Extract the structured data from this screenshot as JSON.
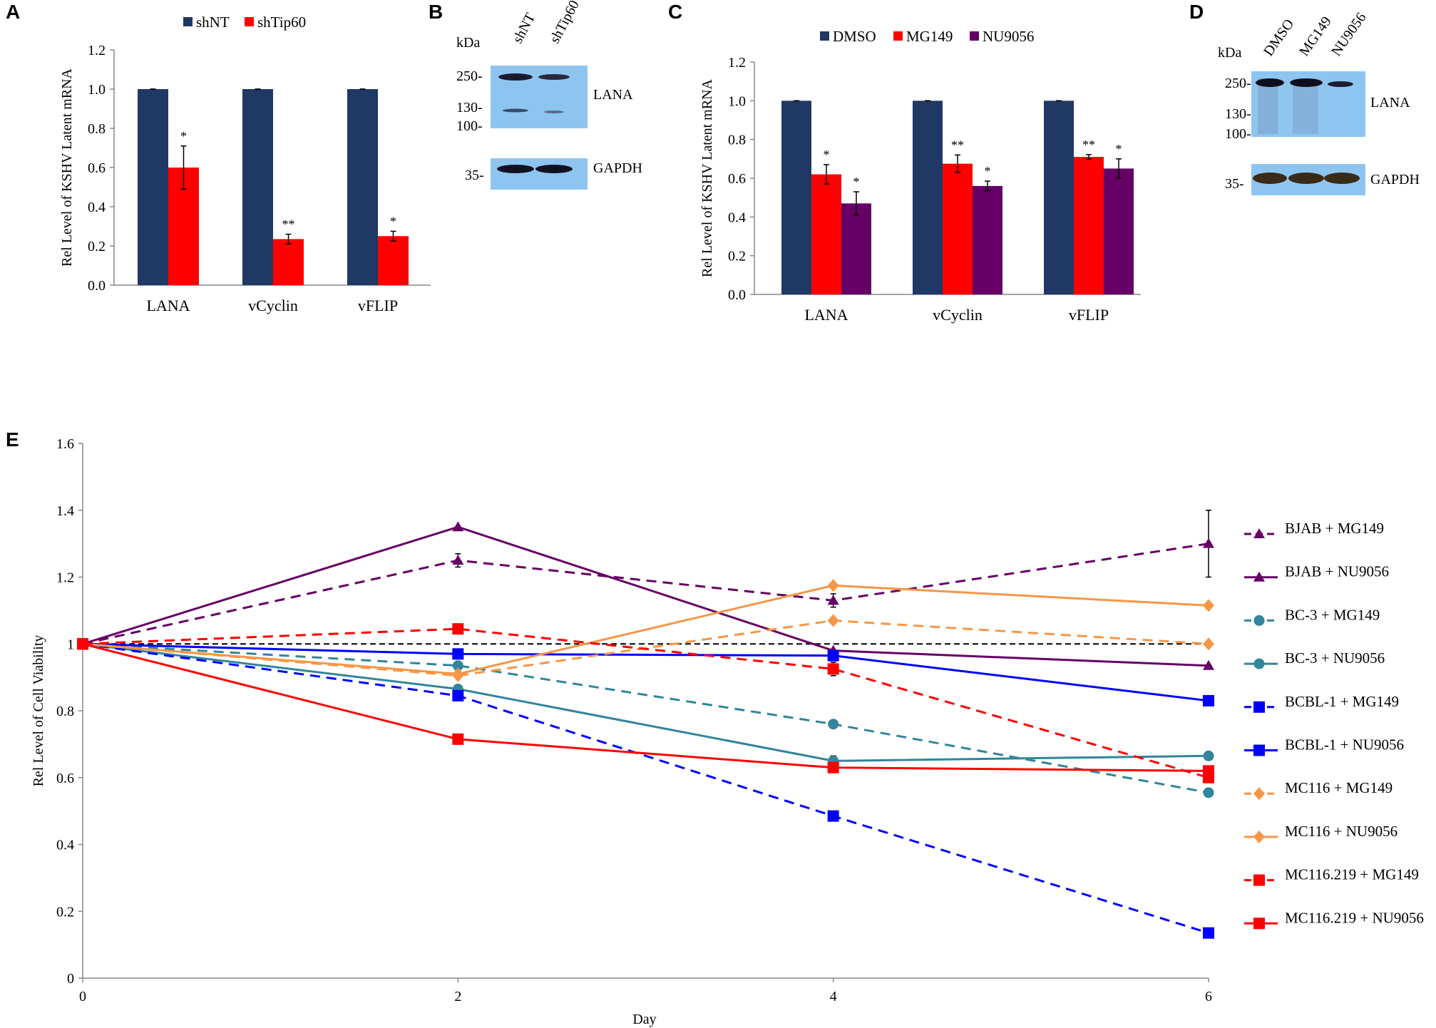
{
  "panels": {
    "A": "A",
    "B": "B",
    "C": "C",
    "D": "D",
    "E": "E"
  },
  "colors": {
    "navy": "#1f3864",
    "red": "#ff0000",
    "purple": "#660066",
    "teal": "#31859c",
    "blue": "#0000ff",
    "orange": "#f79646",
    "blot_bg": "#8ec5f0"
  },
  "chart_data": [
    {
      "panel": "A",
      "type": "bar",
      "categories": [
        "LANA",
        "vCyclin",
        "vFLIP"
      ],
      "series": [
        {
          "name": "shNT",
          "color": "#1f3864",
          "values": [
            1.0,
            1.0,
            1.0
          ],
          "errors": [
            0.0,
            0.0,
            0.0
          ],
          "significance": [
            "",
            "",
            ""
          ]
        },
        {
          "name": "shTip60",
          "color": "#ff0000",
          "values": [
            0.6,
            0.235,
            0.25
          ],
          "errors": [
            0.11,
            0.025,
            0.025
          ],
          "significance": [
            "*",
            "**",
            "*"
          ]
        }
      ],
      "ylabel": "Rel Level of KSHV Latent mRNA",
      "ylim": [
        0,
        1.2
      ],
      "yticks": [
        "0.0",
        "0.2",
        "0.4",
        "0.6",
        "0.8",
        "1.0",
        "1.2"
      ],
      "legend": "top"
    },
    {
      "panel": "C",
      "type": "bar",
      "categories": [
        "LANA",
        "vCyclin",
        "vFLIP"
      ],
      "series": [
        {
          "name": "DMSO",
          "color": "#1f3864",
          "values": [
            1.0,
            1.0,
            1.0
          ],
          "errors": [
            0.0,
            0.0,
            0.0
          ],
          "significance": [
            "",
            "",
            ""
          ]
        },
        {
          "name": "MG149",
          "color": "#ff0000",
          "values": [
            0.62,
            0.675,
            0.71
          ],
          "errors": [
            0.05,
            0.045,
            0.012
          ],
          "significance": [
            "*",
            "**",
            "**"
          ]
        },
        {
          "name": "NU9056",
          "color": "#660066",
          "values": [
            0.47,
            0.56,
            0.65
          ],
          "errors": [
            0.06,
            0.025,
            0.05
          ],
          "significance": [
            "*",
            "*",
            "*"
          ]
        }
      ],
      "ylabel": "Rel Level of KSHV Latent mRNA",
      "ylim": [
        0,
        1.2
      ],
      "yticks": [
        "0.0",
        "0.2",
        "0.4",
        "0.6",
        "0.8",
        "1.0",
        "1.2"
      ],
      "legend": "top"
    },
    {
      "panel": "E",
      "type": "line",
      "xlabel": "Day",
      "ylabel": "Rel Level of Cell Viability",
      "x": [
        0,
        2,
        4,
        6
      ],
      "xticks": [
        "0",
        "2",
        "4",
        "6"
      ],
      "ylim": [
        0,
        1.6
      ],
      "yticks": [
        "0",
        "0.2",
        "0.4",
        "0.6",
        "0.8",
        "1",
        "1.2",
        "1.4",
        "1.6"
      ],
      "reference_line": 1.0,
      "legend": "right",
      "series": [
        {
          "name": "BJAB +  MG149",
          "color": "#660066",
          "dash": true,
          "marker": "triangle",
          "values": [
            1.0,
            1.25,
            1.13,
            1.3
          ],
          "errors": [
            0,
            0.02,
            0.02,
            0.1
          ]
        },
        {
          "name": "BJAB + NU9056",
          "color": "#660066",
          "dash": false,
          "marker": "triangle",
          "values": [
            1.0,
            1.35,
            0.98,
            0.935
          ],
          "errors": [
            0,
            0,
            0,
            0
          ]
        },
        {
          "name": "BC-3 + MG149",
          "color": "#31859c",
          "dash": true,
          "marker": "circle",
          "values": [
            1.0,
            0.935,
            0.76,
            0.555
          ],
          "errors": [
            0,
            0,
            0,
            0
          ]
        },
        {
          "name": "BC-3 + NU9056",
          "color": "#31859c",
          "dash": false,
          "marker": "circle",
          "values": [
            1.0,
            0.865,
            0.65,
            0.665
          ],
          "errors": [
            0,
            0,
            0.015,
            0
          ]
        },
        {
          "name": "BCBL-1 + MG149",
          "color": "#0000ff",
          "dash": true,
          "marker": "square",
          "values": [
            1.0,
            0.845,
            0.485,
            0.135
          ],
          "errors": [
            0,
            0,
            0,
            0
          ]
        },
        {
          "name": "BCBL-1 + NU9056",
          "color": "#0000ff",
          "dash": false,
          "marker": "square",
          "values": [
            1.0,
            0.97,
            0.965,
            0.83
          ],
          "errors": [
            0,
            0,
            0,
            0
          ]
        },
        {
          "name": "MC116 + MG149",
          "color": "#f79646",
          "dash": true,
          "marker": "diamond",
          "values": [
            1.0,
            0.905,
            1.07,
            1.0
          ],
          "errors": [
            0,
            0,
            0,
            0
          ]
        },
        {
          "name": "MC116 + NU9056",
          "color": "#f79646",
          "dash": false,
          "marker": "diamond",
          "values": [
            1.0,
            0.91,
            1.175,
            1.115
          ],
          "errors": [
            0,
            0,
            0,
            0
          ]
        },
        {
          "name": "MC116.219 + MG149",
          "color": "#ff0000",
          "dash": true,
          "marker": "square",
          "values": [
            1.0,
            1.045,
            0.925,
            0.6
          ],
          "errors": [
            0,
            0,
            0.02,
            0
          ]
        },
        {
          "name": "MC116.219 + NU9056",
          "color": "#ff0000",
          "dash": false,
          "marker": "square",
          "values": [
            1.0,
            0.715,
            0.63,
            0.62
          ],
          "errors": [
            0,
            0,
            0,
            0
          ]
        }
      ]
    }
  ],
  "blot_B": {
    "kda": "kDa",
    "lanes": [
      "shNT",
      "shTip60"
    ],
    "markers": [
      "250-",
      "130-",
      "100-"
    ],
    "gapdh_marker": "35-",
    "labels": [
      "LANA",
      "GAPDH"
    ]
  },
  "blot_D": {
    "kda": "kDa",
    "lanes": [
      "DMSO",
      "MG149",
      "NU9056"
    ],
    "markers": [
      "250-",
      "130-",
      "100-"
    ],
    "gapdh_marker": "35-",
    "labels": [
      "LANA",
      "GAPDH"
    ]
  }
}
